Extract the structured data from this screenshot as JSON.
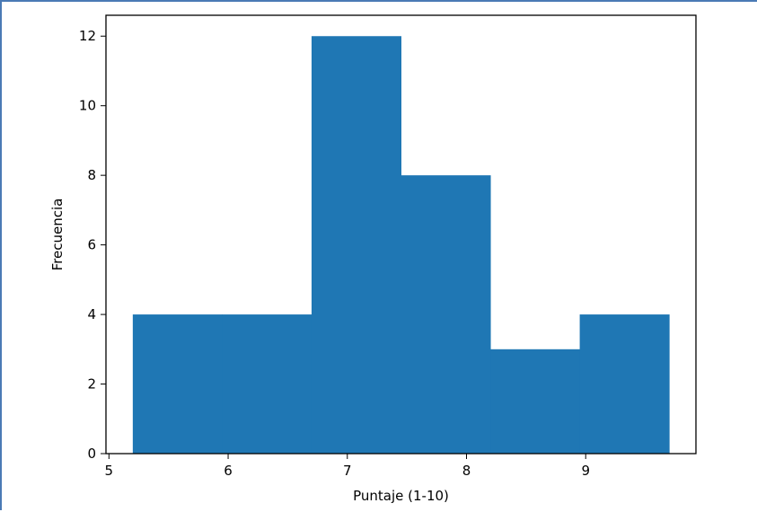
{
  "chart_data": {
    "type": "bar",
    "title": "",
    "xlabel": "Puntaje (1-10)",
    "ylabel": "Frecuencia",
    "xlim": [
      4.975,
      9.925
    ],
    "ylim": [
      0,
      12.6
    ],
    "xticks": [
      5,
      6,
      7,
      8,
      9
    ],
    "yticks": [
      0,
      2,
      4,
      6,
      8,
      10,
      12
    ],
    "bins": [
      {
        "start": 5.2,
        "end": 5.95,
        "value": 4
      },
      {
        "start": 5.95,
        "end": 6.7,
        "value": 4
      },
      {
        "start": 6.7,
        "end": 7.45,
        "value": 12
      },
      {
        "start": 7.45,
        "end": 8.2,
        "value": 8
      },
      {
        "start": 8.2,
        "end": 8.95,
        "value": 3
      },
      {
        "start": 8.95,
        "end": 9.7,
        "value": 4
      }
    ],
    "bar_color": "#1f77b4",
    "grid": false,
    "legend": "none"
  }
}
